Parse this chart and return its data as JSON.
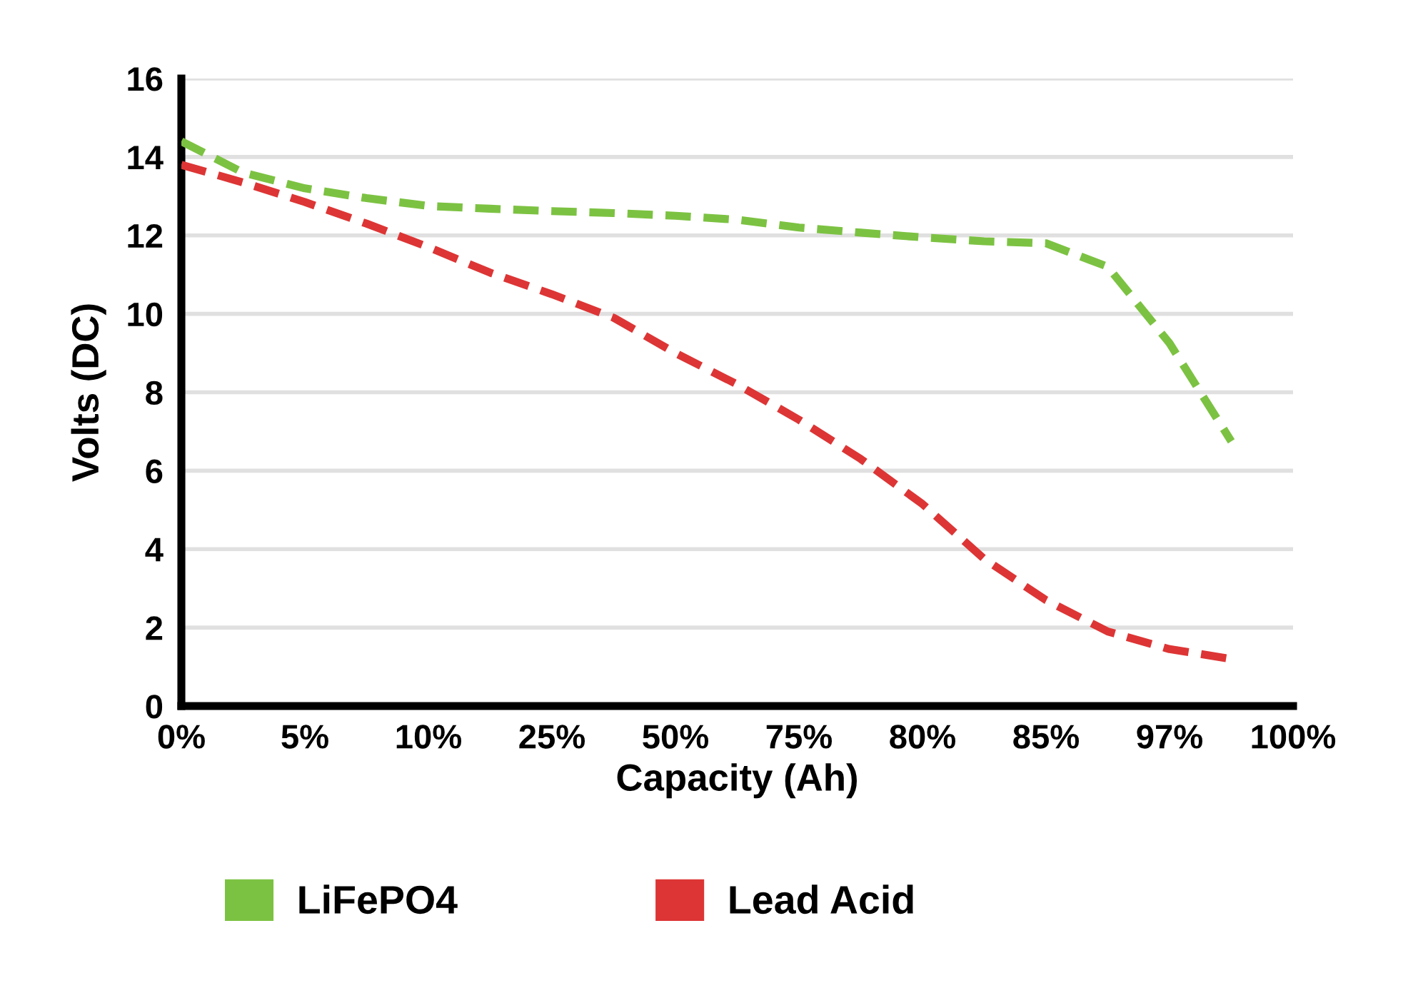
{
  "chart_data": {
    "type": "line",
    "xlabel": "Capacity (Ah)",
    "ylabel": "Volts (DC)",
    "categories": [
      "0%",
      null,
      "5%",
      null,
      "10%",
      null,
      "25%",
      null,
      "50%",
      null,
      "75%",
      null,
      "80%",
      null,
      "85%",
      null,
      "97%",
      null,
      "100%"
    ],
    "ylim": [
      0,
      16
    ],
    "yticks": [
      0,
      2,
      4,
      6,
      8,
      10,
      12,
      14,
      16
    ],
    "grid": "y",
    "legend": "bottom",
    "line_style": "dashed",
    "marker": "none",
    "series": [
      {
        "name": "LiFePO4",
        "color": "#7cc242",
        "values": [
          14.4,
          13.6,
          13.2,
          12.95,
          12.75,
          12.68,
          12.62,
          12.57,
          12.5,
          12.4,
          12.2,
          12.07,
          11.95,
          11.85,
          11.8,
          11.2,
          9.25,
          6.75,
          null
        ]
      },
      {
        "name": "Lead Acid",
        "color": "#dd3535",
        "values": [
          13.8,
          13.35,
          12.85,
          12.3,
          11.7,
          11.05,
          10.5,
          9.9,
          9.0,
          8.2,
          7.3,
          6.3,
          5.15,
          3.75,
          2.7,
          1.9,
          1.45,
          1.2,
          null
        ]
      }
    ]
  }
}
